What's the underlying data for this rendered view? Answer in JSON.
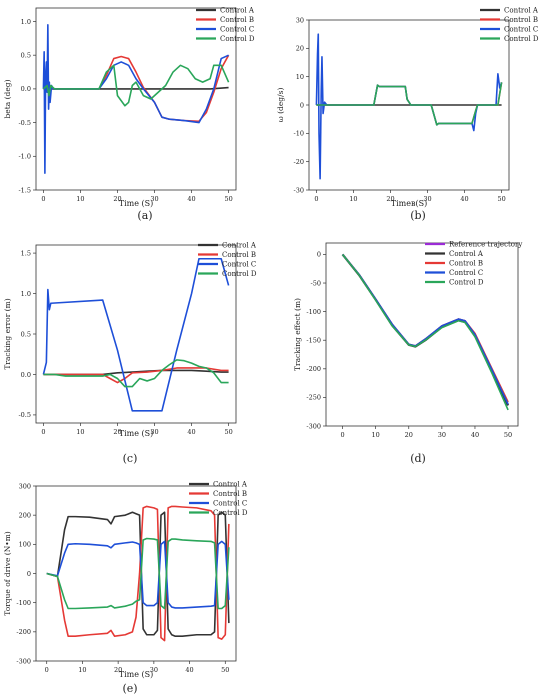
{
  "colors": {
    "Control A": "#333333",
    "Control B": "#e53935",
    "Control C": "#1e4fd8",
    "Control D": "#2aa65a",
    "Reference trajectory": "#9b2bd6"
  },
  "chart_data": [
    {
      "panel": "(a)",
      "type": "line",
      "xlabel": "Time (S)",
      "ylabel": "beta (deg)",
      "xlim": [
        -2,
        52
      ],
      "ylim": [
        -1.5,
        1.2
      ],
      "xticks": [
        0,
        10,
        20,
        30,
        40,
        50
      ],
      "yticks": [
        -1.5,
        -1.0,
        -0.5,
        0.0,
        0.5,
        1.0
      ],
      "ytick_labels": [
        "-1.5",
        "-1.0",
        "-0.5",
        "0.0",
        "0.5",
        "1.0"
      ],
      "legend": [
        "Control A",
        "Control B",
        "Control C",
        "Control D"
      ],
      "series": [
        {
          "name": "Control A",
          "x": [
            0,
            5,
            10,
            15,
            20,
            25,
            30,
            35,
            40,
            45,
            50
          ],
          "y": [
            0,
            0,
            0,
            0,
            0,
            0,
            0,
            0,
            0,
            0,
            0.02
          ]
        },
        {
          "name": "Control B",
          "x": [
            0,
            15,
            17,
            19,
            21,
            23,
            25,
            27,
            30,
            32,
            34,
            38,
            42,
            44,
            46,
            48,
            50
          ],
          "y": [
            0,
            0,
            0.2,
            0.45,
            0.48,
            0.45,
            0.25,
            0.02,
            -0.2,
            -0.42,
            -0.45,
            -0.47,
            -0.48,
            -0.35,
            -0.05,
            0.3,
            0.5
          ]
        },
        {
          "name": "Control C",
          "x": [
            0,
            0.2,
            0.4,
            0.6,
            0.8,
            1.0,
            1.2,
            1.4,
            1.6,
            1.8,
            2.2,
            2.6,
            3,
            15,
            17,
            19,
            21,
            23,
            25,
            27,
            30,
            32,
            34,
            38,
            42,
            44,
            46,
            48,
            50
          ],
          "y": [
            0,
            0.55,
            -1.25,
            0.2,
            0.4,
            -0.05,
            0.95,
            -0.3,
            0.1,
            -0.2,
            0.05,
            0,
            0,
            0,
            0.15,
            0.35,
            0.4,
            0.35,
            0.15,
            0,
            -0.2,
            -0.42,
            -0.45,
            -0.47,
            -0.5,
            -0.3,
            0,
            0.45,
            0.5
          ]
        },
        {
          "name": "Control D",
          "x": [
            0,
            1,
            1.5,
            2,
            3,
            15,
            17,
            19,
            20,
            22,
            23,
            24,
            25,
            27,
            29,
            31,
            33,
            35,
            37,
            39,
            41,
            43,
            45,
            46,
            48,
            50
          ],
          "y": [
            0,
            0.05,
            -0.1,
            0.05,
            0,
            0,
            0.25,
            0.35,
            -0.1,
            -0.25,
            -0.2,
            0.05,
            0.1,
            -0.1,
            -0.15,
            -0.05,
            0.05,
            0.25,
            0.35,
            0.3,
            0.15,
            0.1,
            0.15,
            0.35,
            0.35,
            0.1
          ]
        }
      ]
    },
    {
      "panel": "(b)",
      "type": "line",
      "xlabel": "Timeв(S)",
      "ylabel": "ω (deg/s)",
      "xlim": [
        -2,
        52
      ],
      "ylim": [
        -30,
        30
      ],
      "xticks": [
        0,
        10,
        20,
        30,
        40,
        50
      ],
      "yticks": [
        -30,
        -20,
        -10,
        0,
        10,
        20,
        30
      ],
      "ytick_labels": [
        "-30",
        "-20",
        "-10",
        "0",
        "10",
        "20",
        "30"
      ],
      "legend": [
        "Control A",
        "Control B",
        "Control C",
        "Control D"
      ],
      "series": [
        {
          "name": "Control A",
          "x": [
            0,
            50
          ],
          "y": [
            0,
            0
          ]
        },
        {
          "name": "Control B",
          "x": [
            0,
            15.5,
            16.5,
            17,
            24,
            24.5,
            25.5,
            31,
            32.5,
            33,
            42,
            43,
            43.5,
            49,
            50
          ],
          "y": [
            0,
            0,
            7,
            6.5,
            6.5,
            2,
            0,
            0,
            -7,
            -6.5,
            -6.5,
            -2,
            0,
            0,
            8
          ]
        },
        {
          "name": "Control C",
          "x": [
            0,
            0.3,
            0.5,
            0.7,
            1.0,
            1.3,
            1.5,
            1.8,
            2.2,
            2.8,
            15.5,
            16.5,
            17,
            24,
            24.5,
            25.5,
            31,
            32.5,
            33,
            42,
            42.5,
            43,
            43.5,
            48.5,
            49,
            49.5,
            50
          ],
          "y": [
            0,
            18,
            25,
            -10,
            -26,
            5,
            17,
            -3,
            1,
            0,
            0,
            7,
            6.5,
            6.5,
            2,
            0,
            0,
            -7,
            -6.5,
            -6.5,
            -9,
            -3,
            0,
            0,
            11,
            6,
            8
          ]
        },
        {
          "name": "Control D",
          "x": [
            0,
            15.5,
            16.5,
            17,
            24,
            24.5,
            25.5,
            31,
            32.5,
            33,
            42,
            43,
            43.5,
            49,
            50
          ],
          "y": [
            0,
            0,
            7,
            6.5,
            6.5,
            2,
            0,
            0,
            -7,
            -6.5,
            -6.5,
            -2,
            0,
            0,
            8
          ]
        }
      ]
    },
    {
      "panel": "(c)",
      "type": "line",
      "xlabel": "Time (S)",
      "ylabel": "Tracking error (m)",
      "xlim": [
        -2,
        52
      ],
      "ylim": [
        -0.6,
        1.6
      ],
      "xticks": [
        0,
        10,
        20,
        30,
        40,
        50
      ],
      "yticks": [
        -0.5,
        0.0,
        0.5,
        1.0,
        1.5
      ],
      "ytick_labels": [
        "-0.5",
        "0.0",
        "0.5",
        "1.0",
        "1.5"
      ],
      "legend": [
        "Control A",
        "Control B",
        "Control C",
        "Control D"
      ],
      "series": [
        {
          "name": "Control A",
          "x": [
            0,
            10,
            16,
            20,
            24,
            28,
            32,
            36,
            40,
            44,
            48,
            50
          ],
          "y": [
            0,
            0,
            0,
            0.02,
            0.03,
            0.04,
            0.05,
            0.05,
            0.05,
            0.04,
            0.03,
            0.03
          ]
        },
        {
          "name": "Control B",
          "x": [
            0,
            10,
            16,
            18,
            20,
            22,
            24,
            28,
            32,
            36,
            40,
            44,
            48,
            50
          ],
          "y": [
            0,
            0,
            0,
            -0.05,
            -0.1,
            -0.05,
            0.02,
            0.03,
            0.05,
            0.08,
            0.08,
            0.08,
            0.05,
            0.05
          ]
        },
        {
          "name": "Control C",
          "x": [
            0,
            0.8,
            1.2,
            1.6,
            2,
            16,
            20,
            24,
            32,
            36,
            40,
            42,
            44,
            48,
            50
          ],
          "y": [
            0,
            0.15,
            1.05,
            0.8,
            0.88,
            0.92,
            0.3,
            -0.45,
            -0.45,
            0.3,
            1.0,
            1.43,
            1.43,
            1.43,
            1.1
          ]
        },
        {
          "name": "Control D",
          "x": [
            0,
            3,
            6,
            16,
            18,
            20,
            22,
            24,
            26,
            28,
            30,
            32,
            34,
            36,
            38,
            40,
            42,
            44,
            46,
            48,
            50
          ],
          "y": [
            0,
            0,
            -0.02,
            -0.02,
            0,
            -0.05,
            -0.15,
            -0.15,
            -0.05,
            -0.08,
            -0.05,
            0.05,
            0.12,
            0.18,
            0.17,
            0.14,
            0.1,
            0.08,
            0.02,
            -0.1,
            -0.1
          ]
        }
      ]
    },
    {
      "panel": "(d)",
      "type": "line",
      "xlabel": "",
      "ylabel": "Tracking effect (m)",
      "xlim": [
        -5,
        53
      ],
      "ylim": [
        -300,
        20
      ],
      "xticks": [
        0,
        10,
        20,
        30,
        40,
        50
      ],
      "yticks": [
        -300,
        -250,
        -200,
        -150,
        -100,
        -50,
        0
      ],
      "ytick_labels": [
        "-300",
        "-250",
        "-200",
        "-150",
        "-100",
        "-50",
        "0"
      ],
      "legend": [
        "Reference trajectory",
        "Control A",
        "Control B",
        "Control C",
        "Control D"
      ],
      "series": [
        {
          "name": "Reference trajectory",
          "x": [
            0,
            5,
            10,
            15,
            20,
            22,
            25,
            30,
            35,
            37,
            40,
            45,
            50
          ],
          "y": [
            0,
            -35,
            -78,
            -122,
            -157,
            -160,
            -148,
            -125,
            -113,
            -116,
            -140,
            -200,
            -262
          ]
        },
        {
          "name": "Control A",
          "x": [
            0,
            5,
            10,
            15,
            20,
            22,
            25,
            30,
            35,
            37,
            40,
            45,
            50
          ],
          "y": [
            0,
            -36,
            -79,
            -124,
            -158,
            -161,
            -150,
            -127,
            -115,
            -118,
            -142,
            -202,
            -264
          ]
        },
        {
          "name": "Control B",
          "x": [
            0,
            5,
            10,
            15,
            20,
            22,
            25,
            30,
            35,
            37,
            40,
            45,
            50
          ],
          "y": [
            0,
            -35,
            -78,
            -122,
            -157,
            -160,
            -148,
            -125,
            -113,
            -116,
            -138,
            -198,
            -258
          ]
        },
        {
          "name": "Control C",
          "x": [
            0,
            5,
            10,
            15,
            20,
            22,
            25,
            30,
            35,
            37,
            40,
            45,
            50
          ],
          "y": [
            0,
            -35,
            -78,
            -122,
            -157,
            -160,
            -148,
            -125,
            -113,
            -116,
            -140,
            -200,
            -262
          ]
        },
        {
          "name": "Control D",
          "x": [
            0,
            5,
            10,
            15,
            20,
            22,
            25,
            30,
            35,
            37,
            40,
            45,
            50
          ],
          "y": [
            0,
            -36,
            -80,
            -125,
            -158,
            -161,
            -150,
            -128,
            -116,
            -119,
            -144,
            -206,
            -272
          ]
        }
      ]
    },
    {
      "panel": "(e)",
      "type": "line",
      "xlabel": "Time (S)",
      "ylabel": "Torque of drive (N•m)",
      "xlim": [
        -3,
        53
      ],
      "ylim": [
        -300,
        300
      ],
      "xticks": [
        0,
        10,
        20,
        30,
        40,
        50
      ],
      "yticks": [
        -300,
        -200,
        -100,
        0,
        100,
        200,
        300
      ],
      "ytick_labels": [
        "-300",
        "-200",
        "-100",
        "0",
        "100",
        "200",
        "300"
      ],
      "legend": [
        "Control A",
        "Control B",
        "Control C",
        "Control D"
      ],
      "series": [
        {
          "name": "Control A",
          "x": [
            0,
            3,
            5,
            6,
            8,
            12,
            17,
            18,
            19,
            22,
            24,
            25,
            26,
            27,
            28,
            30,
            31,
            32,
            33,
            34,
            35,
            36,
            38,
            42,
            46,
            47,
            48,
            49,
            50,
            51
          ],
          "y": [
            0,
            -10,
            150,
            195,
            195,
            193,
            185,
            170,
            195,
            200,
            210,
            205,
            200,
            -190,
            -210,
            -210,
            -195,
            200,
            210,
            -190,
            -210,
            -215,
            -215,
            -210,
            -210,
            -200,
            200,
            210,
            200,
            -170
          ]
        },
        {
          "name": "Control B",
          "x": [
            0,
            3,
            5,
            6,
            8,
            12,
            17,
            18,
            19,
            22,
            24,
            25,
            26,
            27,
            28,
            30,
            31,
            32,
            33,
            34,
            35,
            36,
            38,
            42,
            46,
            47,
            48,
            49,
            50,
            51
          ],
          "y": [
            0,
            -10,
            -160,
            -215,
            -215,
            -210,
            -205,
            -195,
            -215,
            -210,
            -200,
            -150,
            0,
            225,
            230,
            225,
            220,
            -220,
            -230,
            225,
            230,
            230,
            228,
            225,
            215,
            200,
            -220,
            -225,
            -210,
            170
          ]
        },
        {
          "name": "Control C",
          "x": [
            0,
            3,
            5,
            6,
            8,
            12,
            17,
            18,
            19,
            22,
            24,
            25,
            26,
            27,
            28,
            30,
            31,
            32,
            33,
            34,
            35,
            36,
            38,
            42,
            46,
            47,
            48,
            49,
            50,
            51
          ],
          "y": [
            0,
            -8,
            70,
            100,
            102,
            100,
            95,
            88,
            100,
            105,
            108,
            105,
            100,
            -100,
            -110,
            -110,
            -100,
            100,
            110,
            -100,
            -115,
            -118,
            -118,
            -115,
            -112,
            -110,
            100,
            110,
            100,
            -90
          ]
        },
        {
          "name": "Control D",
          "x": [
            0,
            3,
            5,
            6,
            8,
            12,
            17,
            18,
            19,
            22,
            24,
            25,
            26,
            27,
            28,
            30,
            31,
            32,
            33,
            34,
            35,
            36,
            38,
            42,
            46,
            47,
            48,
            49,
            50,
            51
          ],
          "y": [
            0,
            -10,
            -90,
            -120,
            -120,
            -118,
            -115,
            -110,
            -118,
            -112,
            -105,
            -95,
            -90,
            115,
            120,
            118,
            115,
            -110,
            -120,
            110,
            118,
            118,
            115,
            112,
            110,
            105,
            -120,
            -120,
            -110,
            90
          ]
        }
      ]
    }
  ]
}
